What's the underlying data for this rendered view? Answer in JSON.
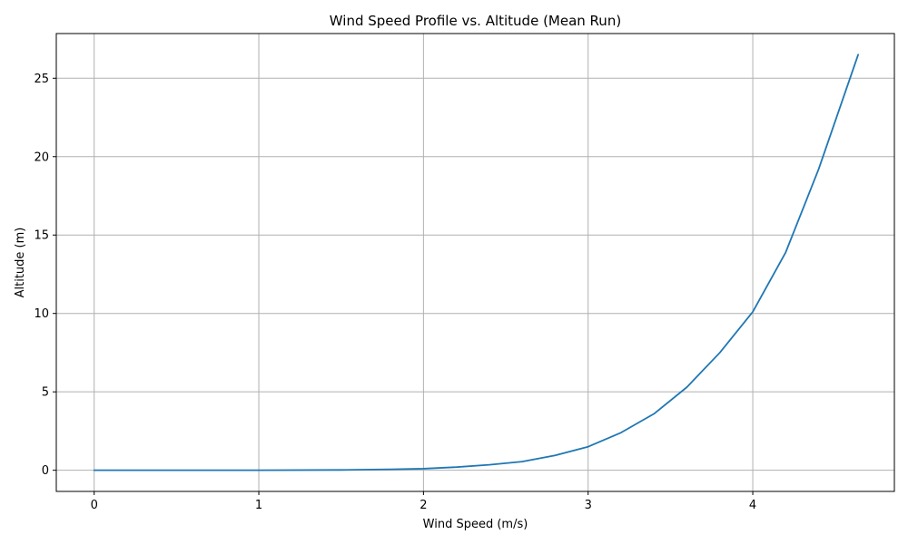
{
  "chart_data": {
    "type": "line",
    "title": "Wind Speed Profile vs. Altitude (Mean Run)",
    "xlabel": "Wind Speed (m/s)",
    "ylabel": "Altitude (m)",
    "xlim": [
      -0.23,
      4.86
    ],
    "ylim": [
      -1.35,
      27.85
    ],
    "xticks": [
      0,
      1,
      2,
      3,
      4
    ],
    "yticks": [
      0,
      5,
      10,
      15,
      20,
      25
    ],
    "grid": true,
    "series": [
      {
        "color": "#1f77b4",
        "x": [
          0,
          0.5,
          1.0,
          1.5,
          1.8,
          2.0,
          2.2,
          2.4,
          2.6,
          2.8,
          3.0,
          3.2,
          3.4,
          3.6,
          3.8,
          4.0,
          4.2,
          4.4,
          4.64
        ],
        "y": [
          0,
          0.0,
          0.0,
          0.02,
          0.06,
          0.1,
          0.2,
          0.35,
          0.55,
          0.95,
          1.5,
          2.4,
          3.6,
          5.3,
          7.5,
          10.1,
          13.9,
          19.2,
          26.5
        ]
      }
    ]
  }
}
